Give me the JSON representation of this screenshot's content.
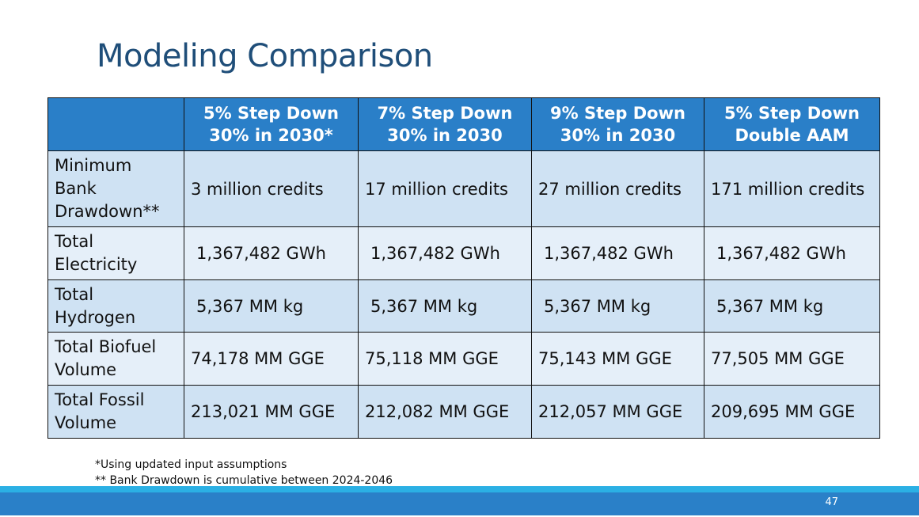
{
  "title": "Modeling Comparison",
  "table": {
    "headers": [
      "",
      "5% Step Down\n30% in 2030*",
      "7% Step Down\n30% in 2030",
      "9% Step Down\n30% in 2030",
      "5% Step Down\nDouble AAM"
    ],
    "rows": [
      {
        "label": "Minimum Bank Drawdown**",
        "values": [
          "3 million credits",
          "17 million credits",
          "27 million credits",
          "171 million credits"
        ]
      },
      {
        "label": "Total Electricity",
        "values": [
          "1,367,482 GWh",
          "1,367,482 GWh",
          "1,367,482 GWh",
          "1,367,482 GWh"
        ]
      },
      {
        "label": "Total Hydrogen",
        "values": [
          "5,367 MM kg",
          "5,367 MM kg",
          "5,367 MM kg",
          "5,367 MM kg"
        ]
      },
      {
        "label": "Total Biofuel Volume",
        "values": [
          "74,178 MM GGE",
          "75,118 MM GGE",
          "75,143 MM GGE",
          "77,505 MM GGE"
        ]
      },
      {
        "label": "Total Fossil Volume",
        "values": [
          "213,021 MM GGE",
          "212,082 MM GGE",
          "212,057 MM GGE",
          "209,695 MM GGE"
        ]
      }
    ]
  },
  "notes": [
    "*Using updated input assumptions",
    "** Bank Drawdown is cumulative between 2024-2046"
  ],
  "page_number": "47",
  "colors": {
    "header": "#2a7fc8",
    "row_dark": "#cfe2f3",
    "row_light": "#e5eff9",
    "footer": "#2a80c8",
    "stripe": "#2bb0e4",
    "title": "#1f4e79"
  }
}
